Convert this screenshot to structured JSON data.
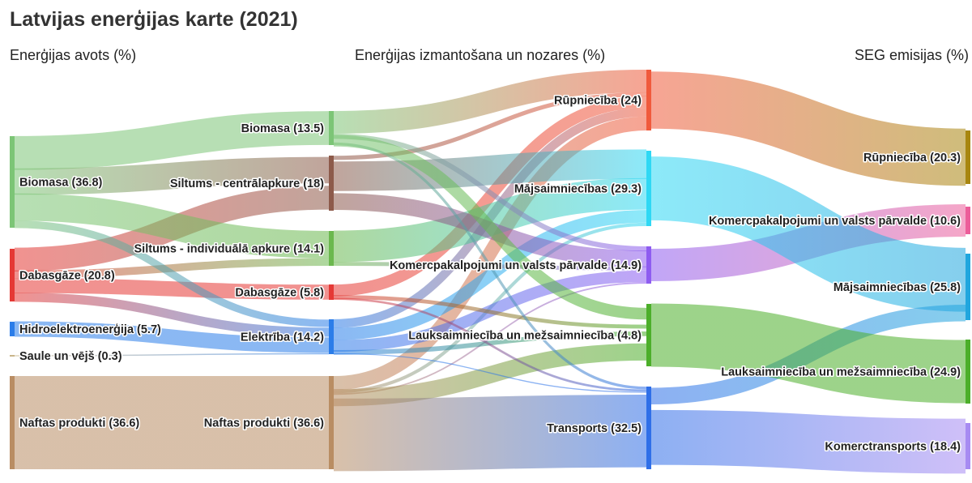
{
  "title": "Latvijas enerģijas karte (2021)",
  "columns": [
    "Enerģijas avots (%)",
    "Enerģijas izmantošana un nozares (%)",
    "SEG emisijas (%)"
  ],
  "chart_data": {
    "type": "sankey",
    "title": "Latvijas enerģijas karte (2021)",
    "nodes": [
      {
        "id": "s_bio",
        "label": "Biomasa (36.8)",
        "value": 36.8,
        "color": "#7cc576",
        "column": 0
      },
      {
        "id": "s_gas",
        "label": "Dabasgāze (20.8)",
        "value": 20.8,
        "color": "#e53935",
        "column": 0
      },
      {
        "id": "s_hydro",
        "label": "Hidroelektroenerģija (5.7)",
        "value": 5.7,
        "color": "#2b7de9",
        "column": 0
      },
      {
        "id": "s_sun",
        "label": "Saule un vējš (0.3)",
        "value": 0.3,
        "color": "#c9b58a",
        "column": 0
      },
      {
        "id": "s_oil",
        "label": "Naftas produkti (36.6)",
        "value": 36.6,
        "color": "#b98d63",
        "column": 0
      },
      {
        "id": "m_bio",
        "label": "Biomasa (13.5)",
        "value": 13.5,
        "color": "#7cc576",
        "column": 1
      },
      {
        "id": "m_dh",
        "label": "Siltums - centrālapkure (18)",
        "value": 18,
        "color": "#8d5a4a",
        "column": 1
      },
      {
        "id": "m_ih",
        "label": "Siltums - individuālā apkure (14.1)",
        "value": 14.1,
        "color": "#6bb84e",
        "column": 1
      },
      {
        "id": "m_gas",
        "label": "Dabasgāze (5.8)",
        "value": 5.8,
        "color": "#e53935",
        "column": 1
      },
      {
        "id": "m_el",
        "label": "Elektrība (14.2)",
        "value": 14.2,
        "color": "#2b7de9",
        "column": 1
      },
      {
        "id": "m_oil",
        "label": "Naftas produkti (36.6)",
        "value": 36.6,
        "color": "#b98d63",
        "column": 1
      },
      {
        "id": "u_ind",
        "label": "Rūpniecība (24)",
        "value": 24,
        "color": "#f05a3c",
        "column": 2
      },
      {
        "id": "u_hh",
        "label": "Mājsaimniecības (29.3)",
        "value": 29.3,
        "color": "#2fd8f4",
        "column": 2
      },
      {
        "id": "u_com",
        "label": "Komercpakalpojumi un valsts pārvalde (14.9)",
        "value": 14.9,
        "color": "#8e5cf0",
        "column": 2
      },
      {
        "id": "u_agr",
        "label": "Lauksaimniecība un mežsaimniecība (4.8)",
        "value": 4.8,
        "color": "#4caf2a",
        "column": 2
      },
      {
        "id": "u_tr",
        "label": "Transports (32.5)",
        "value": 32.5,
        "color": "#2f6fe8",
        "column": 2
      },
      {
        "id": "g_ind",
        "label": "Rūpniecība (20.3)",
        "value": 20.3,
        "color": "#a8860f",
        "column": 3
      },
      {
        "id": "g_com",
        "label": "Komercpakalpojumi un valsts pārvalde (10.6)",
        "value": 10.6,
        "color": "#ec5d9a",
        "column": 3
      },
      {
        "id": "g_hh",
        "label": "Mājsaimniecības (25.8)",
        "value": 25.8,
        "color": "#21a6de",
        "column": 3
      },
      {
        "id": "g_agr",
        "label": "Lauksaimniecība un mežsaimniecība (24.9)",
        "value": 24.9,
        "color": "#4caf2a",
        "column": 3
      },
      {
        "id": "g_tr",
        "label": "Komerctransports (18.4)",
        "value": 18.4,
        "color": "#a78bf2",
        "column": 3
      }
    ],
    "links": [
      {
        "source": "s_bio",
        "target": "m_bio",
        "value": 13.5
      },
      {
        "source": "s_bio",
        "target": "m_dh",
        "value": 9.5
      },
      {
        "source": "s_bio",
        "target": "m_ih",
        "value": 11
      },
      {
        "source": "s_bio",
        "target": "m_el",
        "value": 2.8
      },
      {
        "source": "s_gas",
        "target": "m_dh",
        "value": 8.5
      },
      {
        "source": "s_gas",
        "target": "m_ih",
        "value": 3.1
      },
      {
        "source": "s_gas",
        "target": "m_gas",
        "value": 5.8
      },
      {
        "source": "s_gas",
        "target": "m_el",
        "value": 3.4
      },
      {
        "source": "s_hydro",
        "target": "m_el",
        "value": 5.7
      },
      {
        "source": "s_sun",
        "target": "m_el",
        "value": 0.3
      },
      {
        "source": "s_oil",
        "target": "m_oil",
        "value": 36.6
      },
      {
        "source": "m_bio",
        "target": "u_ind",
        "value": 9
      },
      {
        "source": "m_bio",
        "target": "u_com",
        "value": 2
      },
      {
        "source": "m_bio",
        "target": "u_agr",
        "value": 1.5
      },
      {
        "source": "m_bio",
        "target": "u_tr",
        "value": 1
      },
      {
        "source": "m_dh",
        "target": "u_ind",
        "value": 1.5
      },
      {
        "source": "m_dh",
        "target": "u_hh",
        "value": 10.5
      },
      {
        "source": "m_dh",
        "target": "u_com",
        "value": 6
      },
      {
        "source": "m_ih",
        "target": "u_hh",
        "value": 12.5
      },
      {
        "source": "m_ih",
        "target": "u_com",
        "value": 1.6
      },
      {
        "source": "m_gas",
        "target": "u_ind",
        "value": 4.5
      },
      {
        "source": "m_gas",
        "target": "u_agr",
        "value": 0.5
      },
      {
        "source": "m_gas",
        "target": "u_tr",
        "value": 0.8
      },
      {
        "source": "m_el",
        "target": "u_ind",
        "value": 3.5
      },
      {
        "source": "m_el",
        "target": "u_hh",
        "value": 5
      },
      {
        "source": "m_el",
        "target": "u_com",
        "value": 4.7
      },
      {
        "source": "m_el",
        "target": "u_agr",
        "value": 0.6
      },
      {
        "source": "m_el",
        "target": "u_tr",
        "value": 0.4
      },
      {
        "source": "m_oil",
        "target": "u_ind",
        "value": 5.5
      },
      {
        "source": "m_oil",
        "target": "u_hh",
        "value": 1.3
      },
      {
        "source": "m_oil",
        "target": "u_com",
        "value": 0.6
      },
      {
        "source": "m_oil",
        "target": "u_agr",
        "value": 2.2
      },
      {
        "source": "m_oil",
        "target": "u_tr",
        "value": 27
      },
      {
        "source": "u_ind",
        "target": "g_ind",
        "value": 20.3
      },
      {
        "source": "u_hh",
        "target": "g_hh",
        "value": 20.3
      },
      {
        "source": "u_com",
        "target": "g_com",
        "value": 10.6
      },
      {
        "source": "u_agr",
        "target": "g_agr",
        "value": 24.9
      },
      {
        "source": "u_tr",
        "target": "g_hh",
        "value": 5.5
      },
      {
        "source": "u_tr",
        "target": "g_tr",
        "value": 18.4
      }
    ]
  }
}
